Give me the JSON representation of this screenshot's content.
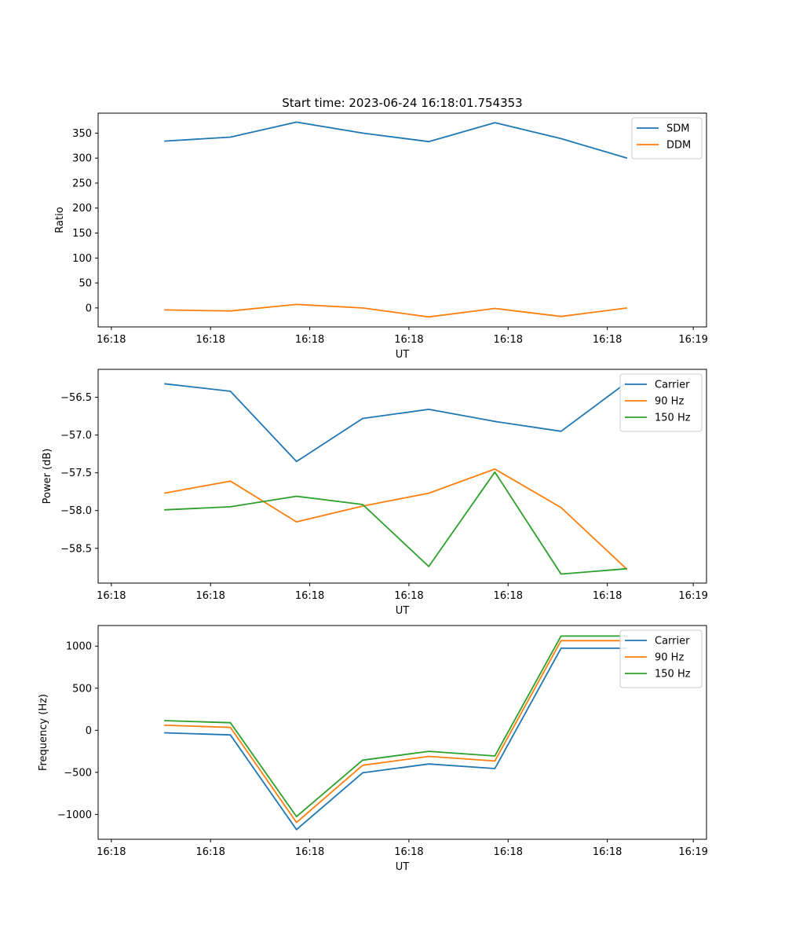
{
  "figure_title": "Start time: 2023-06-24 16:18:01.754353",
  "colors": {
    "blue": "#1f77b4",
    "orange": "#ff7f0e",
    "green": "#2ca02c"
  },
  "chart_data": [
    {
      "type": "line",
      "title": "Start time: 2023-06-24 16:18:01.754353",
      "xlabel": "UT",
      "ylabel": "Ratio",
      "xtick_labels": [
        "16:18",
        "16:18",
        "16:18",
        "16:18",
        "16:18",
        "16:18",
        "16:19"
      ],
      "ytick_values": [
        0,
        50,
        100,
        150,
        200,
        250,
        300,
        350
      ],
      "ylim": [
        -38,
        390
      ],
      "legend_position": "top-right",
      "x": [
        1,
        2,
        3,
        4,
        5,
        6,
        7,
        8
      ],
      "series": [
        {
          "name": "SDM",
          "color": "#1f77b4",
          "values": [
            334,
            342,
            372,
            350,
            333,
            371,
            339,
            300
          ]
        },
        {
          "name": "DDM",
          "color": "#ff7f0e",
          "values": [
            -4,
            -6,
            7,
            0,
            -18,
            -1,
            -17,
            0
          ]
        }
      ]
    },
    {
      "type": "line",
      "title": "",
      "xlabel": "UT",
      "ylabel": "Power (dB)",
      "xtick_labels": [
        "16:18",
        "16:18",
        "16:18",
        "16:18",
        "16:18",
        "16:18",
        "16:19"
      ],
      "ytick_values": [
        -56.5,
        -57.0,
        -57.5,
        -58.0,
        -58.5
      ],
      "ytick_labels": [
        "−56.5",
        "−57.0",
        "−57.5",
        "−58.0",
        "−58.5"
      ],
      "ylim": [
        -58.96,
        -56.13
      ],
      "legend_position": "top-right",
      "x": [
        1,
        2,
        3,
        4,
        5,
        6,
        7,
        8
      ],
      "series": [
        {
          "name": "Carrier",
          "color": "#1f77b4",
          "values": [
            -56.32,
            -56.42,
            -57.35,
            -56.78,
            -56.66,
            -56.82,
            -56.95,
            -56.3
          ]
        },
        {
          "name": "90 Hz",
          "color": "#ff7f0e",
          "values": [
            -57.77,
            -57.61,
            -58.15,
            -57.94,
            -57.77,
            -57.45,
            -57.96,
            -58.78
          ]
        },
        {
          "name": "150 Hz",
          "color": "#2ca02c",
          "values": [
            -57.99,
            -57.95,
            -57.81,
            -57.92,
            -58.74,
            -57.49,
            -58.84,
            -58.77
          ]
        }
      ]
    },
    {
      "type": "line",
      "title": "",
      "xlabel": "UT",
      "ylabel": "Frequency (Hz)",
      "xtick_labels": [
        "16:18",
        "16:18",
        "16:18",
        "16:18",
        "16:18",
        "16:18",
        "16:19"
      ],
      "ytick_values": [
        1000,
        500,
        0,
        -500,
        -1000
      ],
      "ytick_labels": [
        "1000",
        "500",
        "0",
        "−500",
        "−1000"
      ],
      "ylim": [
        -1295,
        1245
      ],
      "legend_position": "top-right",
      "x": [
        1,
        2,
        3,
        4,
        5,
        6,
        7,
        8
      ],
      "series": [
        {
          "name": "Carrier",
          "color": "#1f77b4",
          "values": [
            -30,
            -55,
            -1180,
            -505,
            -400,
            -455,
            975,
            975
          ]
        },
        {
          "name": "90 Hz",
          "color": "#ff7f0e",
          "values": [
            60,
            35,
            -1095,
            -415,
            -310,
            -365,
            1065,
            1065
          ]
        },
        {
          "name": "150 Hz",
          "color": "#2ca02c",
          "values": [
            115,
            90,
            -1025,
            -355,
            -250,
            -305,
            1120,
            1120
          ]
        }
      ]
    }
  ]
}
